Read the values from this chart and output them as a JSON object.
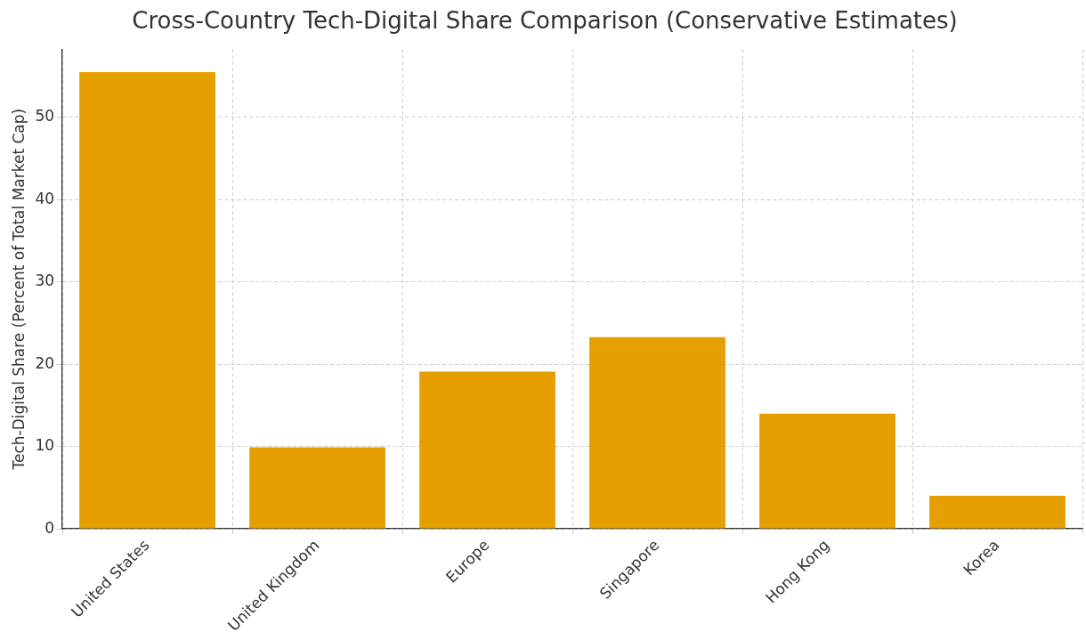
{
  "chart_data": {
    "type": "bar",
    "title": "Cross-Country Tech-Digital Share Comparison (Conservative Estimates)",
    "ylabel": "Tech-Digital Share (Percent of Total Market Cap)",
    "categories": [
      "United States",
      "United Kingdom",
      "Europe",
      "Singapore",
      "Hong Kong",
      "Korea"
    ],
    "values": [
      55.5,
      9.9,
      19.1,
      23.3,
      14.0,
      4.0
    ],
    "color": "#e5a000",
    "ylim": [
      0,
      58.3
    ],
    "yticks": [
      0,
      10,
      20,
      30,
      40,
      50
    ],
    "grid": true
  }
}
